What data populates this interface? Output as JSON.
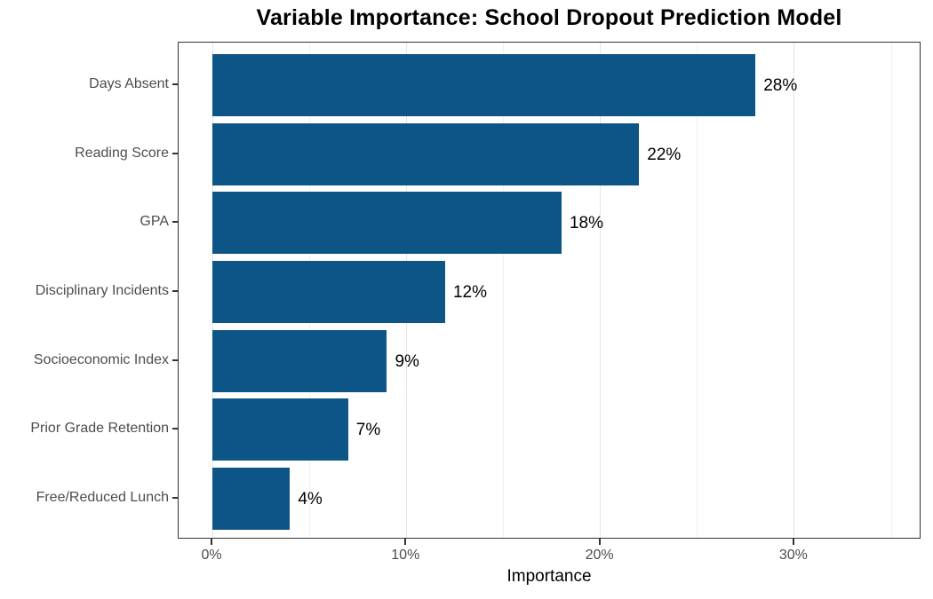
{
  "chart_data": {
    "type": "bar",
    "orientation": "horizontal",
    "title": "Variable Importance: School Dropout Prediction Model",
    "xlabel": "Importance",
    "ylabel": "",
    "categories": [
      "Days Absent",
      "Reading Score",
      "GPA",
      "Disciplinary Incidents",
      "Socioeconomic Index",
      "Prior Grade Retention",
      "Free/Reduced Lunch"
    ],
    "series": [
      {
        "name": "Importance",
        "values": [
          28,
          22,
          18,
          12,
          9,
          7,
          4
        ]
      }
    ],
    "bar_labels": [
      "28%",
      "22%",
      "18%",
      "12%",
      "9%",
      "7%",
      "4%"
    ],
    "x_ticks": {
      "values": [
        0,
        10,
        20,
        30
      ],
      "labels": [
        "0%",
        "10%",
        "20%",
        "30%"
      ]
    },
    "x_minor_ticks": [
      5,
      15,
      25,
      35
    ],
    "xlim": [
      -1.7,
      36.6
    ],
    "grid": "vertical major and minor, no horizontal",
    "legend": "none",
    "colors": {
      "bar_fill": "#0C5586",
      "grid_major": "#E4E4E4",
      "grid_minor": "#F1F1F1",
      "panel_border": "#333333",
      "tick_mark": "#333333",
      "axis_text": "#4d4d4d",
      "value_label": "#000000",
      "background": "#FFFFFF"
    }
  }
}
